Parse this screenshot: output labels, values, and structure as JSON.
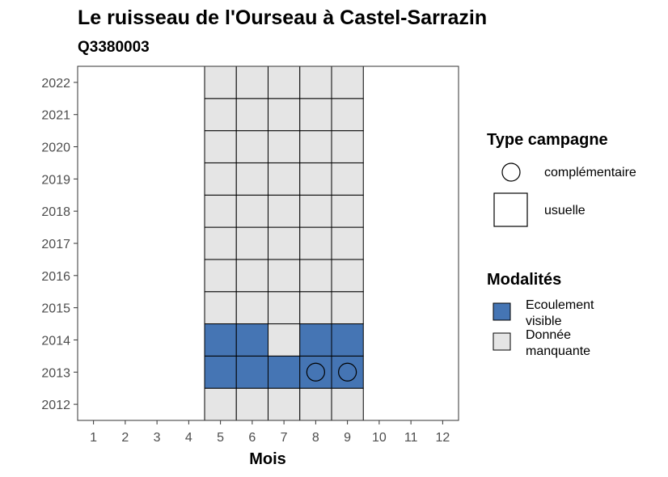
{
  "title": "Le ruisseau de l'Ourseau à Castel-Sarrazin",
  "subtitle": "Q3380003",
  "colors": {
    "Ecoulement visible": "#4575b4",
    "Donnée manquante": "#e5e5e5",
    "grid_stroke": "#000000"
  },
  "legend": {
    "type_title": "Type campagne",
    "type_items": [
      {
        "label": "complémentaire",
        "shape": "circle-icon"
      },
      {
        "label": "usuelle",
        "shape": "square-icon"
      }
    ],
    "mod_title": "Modalités",
    "mod_items": [
      {
        "lines": [
          "Ecoulement",
          "visible"
        ],
        "key": "Ecoulement visible"
      },
      {
        "lines": [
          "Donnée",
          "manquante"
        ],
        "key": "Donnée manquante"
      }
    ]
  },
  "chart_data": {
    "type": "heatmap",
    "title": "Le ruisseau de l'Ourseau à Castel-Sarrazin",
    "subtitle": "Q3380003",
    "xlabel": "Mois",
    "ylabel": "",
    "x_ticks": [
      "1",
      "2",
      "3",
      "4",
      "5",
      "6",
      "7",
      "8",
      "9",
      "10",
      "11",
      "12"
    ],
    "y_ticks": [
      "2012",
      "2013",
      "2014",
      "2015",
      "2016",
      "2017",
      "2018",
      "2019",
      "2020",
      "2021",
      "2022"
    ],
    "xlim": [
      0.5,
      12.5
    ],
    "ylim": [
      2011.5,
      2022.5
    ],
    "grid": false,
    "legend_position": "right",
    "cells": [
      {
        "month": 5,
        "year": 2012,
        "modalite": "Donnée manquante",
        "campagne": "usuelle"
      },
      {
        "month": 6,
        "year": 2012,
        "modalite": "Donnée manquante",
        "campagne": "usuelle"
      },
      {
        "month": 7,
        "year": 2012,
        "modalite": "Donnée manquante",
        "campagne": "usuelle"
      },
      {
        "month": 8,
        "year": 2012,
        "modalite": "Donnée manquante",
        "campagne": "usuelle"
      },
      {
        "month": 9,
        "year": 2012,
        "modalite": "Donnée manquante",
        "campagne": "usuelle"
      },
      {
        "month": 5,
        "year": 2013,
        "modalite": "Ecoulement visible",
        "campagne": "usuelle"
      },
      {
        "month": 6,
        "year": 2013,
        "modalite": "Ecoulement visible",
        "campagne": "usuelle"
      },
      {
        "month": 7,
        "year": 2013,
        "modalite": "Ecoulement visible",
        "campagne": "usuelle"
      },
      {
        "month": 8,
        "year": 2013,
        "modalite": "Ecoulement visible",
        "campagne": "usuelle"
      },
      {
        "month": 9,
        "year": 2013,
        "modalite": "Ecoulement visible",
        "campagne": "usuelle"
      },
      {
        "month": 5,
        "year": 2014,
        "modalite": "Ecoulement visible",
        "campagne": "usuelle"
      },
      {
        "month": 6,
        "year": 2014,
        "modalite": "Ecoulement visible",
        "campagne": "usuelle"
      },
      {
        "month": 7,
        "year": 2014,
        "modalite": "Donnée manquante",
        "campagne": "usuelle"
      },
      {
        "month": 8,
        "year": 2014,
        "modalite": "Ecoulement visible",
        "campagne": "usuelle"
      },
      {
        "month": 9,
        "year": 2014,
        "modalite": "Ecoulement visible",
        "campagne": "usuelle"
      },
      {
        "month": 5,
        "year": 2015,
        "modalite": "Donnée manquante",
        "campagne": "usuelle"
      },
      {
        "month": 6,
        "year": 2015,
        "modalite": "Donnée manquante",
        "campagne": "usuelle"
      },
      {
        "month": 7,
        "year": 2015,
        "modalite": "Donnée manquante",
        "campagne": "usuelle"
      },
      {
        "month": 8,
        "year": 2015,
        "modalite": "Donnée manquante",
        "campagne": "usuelle"
      },
      {
        "month": 9,
        "year": 2015,
        "modalite": "Donnée manquante",
        "campagne": "usuelle"
      },
      {
        "month": 5,
        "year": 2016,
        "modalite": "Donnée manquante",
        "campagne": "usuelle"
      },
      {
        "month": 6,
        "year": 2016,
        "modalite": "Donnée manquante",
        "campagne": "usuelle"
      },
      {
        "month": 7,
        "year": 2016,
        "modalite": "Donnée manquante",
        "campagne": "usuelle"
      },
      {
        "month": 8,
        "year": 2016,
        "modalite": "Donnée manquante",
        "campagne": "usuelle"
      },
      {
        "month": 9,
        "year": 2016,
        "modalite": "Donnée manquante",
        "campagne": "usuelle"
      },
      {
        "month": 5,
        "year": 2017,
        "modalite": "Donnée manquante",
        "campagne": "usuelle"
      },
      {
        "month": 6,
        "year": 2017,
        "modalite": "Donnée manquante",
        "campagne": "usuelle"
      },
      {
        "month": 7,
        "year": 2017,
        "modalite": "Donnée manquante",
        "campagne": "usuelle"
      },
      {
        "month": 8,
        "year": 2017,
        "modalite": "Donnée manquante",
        "campagne": "usuelle"
      },
      {
        "month": 9,
        "year": 2017,
        "modalite": "Donnée manquante",
        "campagne": "usuelle"
      },
      {
        "month": 5,
        "year": 2018,
        "modalite": "Donnée manquante",
        "campagne": "usuelle"
      },
      {
        "month": 6,
        "year": 2018,
        "modalite": "Donnée manquante",
        "campagne": "usuelle"
      },
      {
        "month": 7,
        "year": 2018,
        "modalite": "Donnée manquante",
        "campagne": "usuelle"
      },
      {
        "month": 8,
        "year": 2018,
        "modalite": "Donnée manquante",
        "campagne": "usuelle"
      },
      {
        "month": 9,
        "year": 2018,
        "modalite": "Donnée manquante",
        "campagne": "usuelle"
      },
      {
        "month": 5,
        "year": 2019,
        "modalite": "Donnée manquante",
        "campagne": "usuelle"
      },
      {
        "month": 6,
        "year": 2019,
        "modalite": "Donnée manquante",
        "campagne": "usuelle"
      },
      {
        "month": 7,
        "year": 2019,
        "modalite": "Donnée manquante",
        "campagne": "usuelle"
      },
      {
        "month": 8,
        "year": 2019,
        "modalite": "Donnée manquante",
        "campagne": "usuelle"
      },
      {
        "month": 9,
        "year": 2019,
        "modalite": "Donnée manquante",
        "campagne": "usuelle"
      },
      {
        "month": 5,
        "year": 2020,
        "modalite": "Donnée manquante",
        "campagne": "usuelle"
      },
      {
        "month": 6,
        "year": 2020,
        "modalite": "Donnée manquante",
        "campagne": "usuelle"
      },
      {
        "month": 7,
        "year": 2020,
        "modalite": "Donnée manquante",
        "campagne": "usuelle"
      },
      {
        "month": 8,
        "year": 2020,
        "modalite": "Donnée manquante",
        "campagne": "usuelle"
      },
      {
        "month": 9,
        "year": 2020,
        "modalite": "Donnée manquante",
        "campagne": "usuelle"
      },
      {
        "month": 5,
        "year": 2021,
        "modalite": "Donnée manquante",
        "campagne": "usuelle"
      },
      {
        "month": 6,
        "year": 2021,
        "modalite": "Donnée manquante",
        "campagne": "usuelle"
      },
      {
        "month": 7,
        "year": 2021,
        "modalite": "Donnée manquante",
        "campagne": "usuelle"
      },
      {
        "month": 8,
        "year": 2021,
        "modalite": "Donnée manquante",
        "campagne": "usuelle"
      },
      {
        "month": 9,
        "year": 2021,
        "modalite": "Donnée manquante",
        "campagne": "usuelle"
      },
      {
        "month": 5,
        "year": 2022,
        "modalite": "Donnée manquante",
        "campagne": "usuelle"
      },
      {
        "month": 6,
        "year": 2022,
        "modalite": "Donnée manquante",
        "campagne": "usuelle"
      },
      {
        "month": 7,
        "year": 2022,
        "modalite": "Donnée manquante",
        "campagne": "usuelle"
      },
      {
        "month": 8,
        "year": 2022,
        "modalite": "Donnée manquante",
        "campagne": "usuelle"
      },
      {
        "month": 9,
        "year": 2022,
        "modalite": "Donnée manquante",
        "campagne": "usuelle"
      }
    ],
    "points": [
      {
        "month": 8,
        "year": 2013,
        "campagne": "complémentaire",
        "modalite": "Ecoulement visible"
      },
      {
        "month": 9,
        "year": 2013,
        "campagne": "complémentaire",
        "modalite": "Ecoulement visible"
      }
    ]
  }
}
